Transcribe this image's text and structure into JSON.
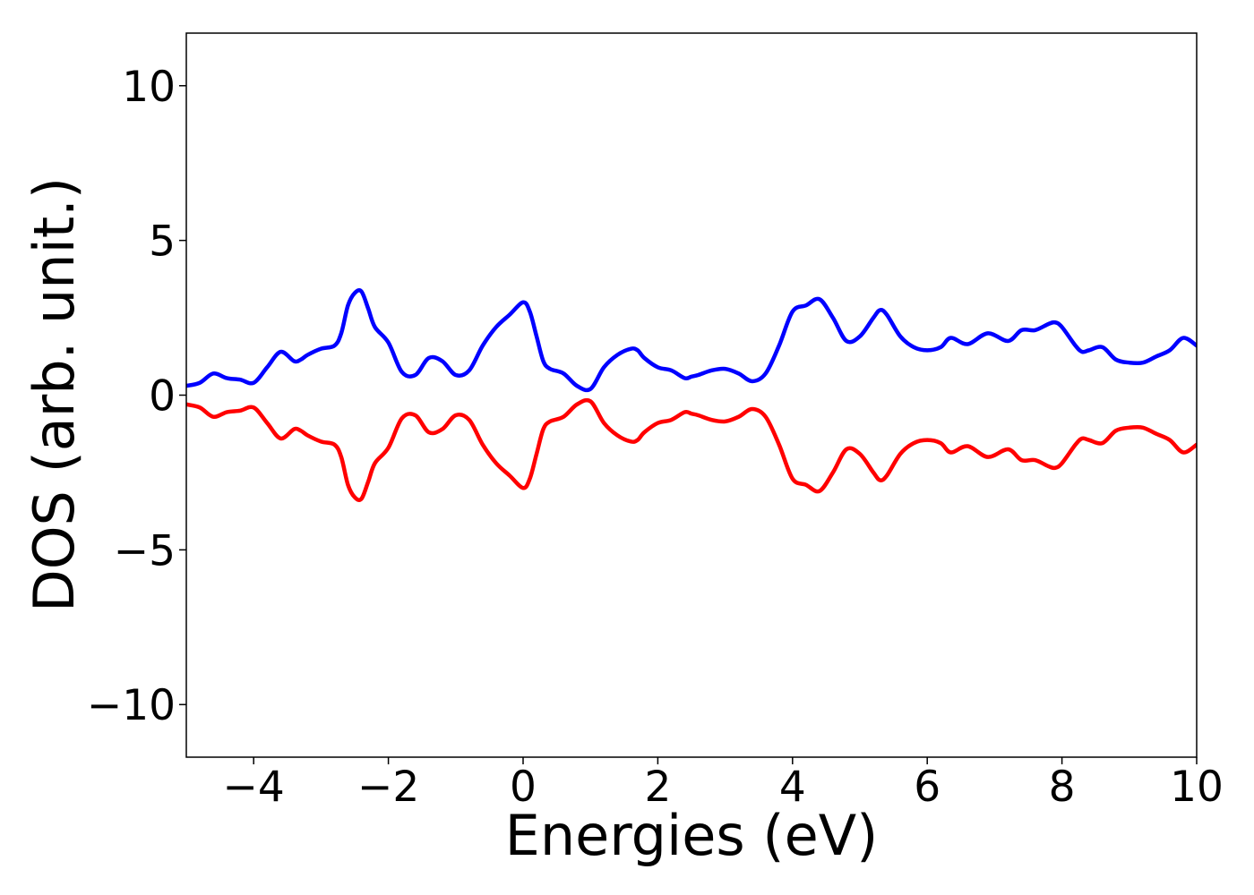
{
  "chart_data": {
    "type": "line",
    "title": "",
    "xlabel": "Energies (eV)",
    "ylabel": "DOS (arb. unit.)",
    "xlim": [
      -5,
      10
    ],
    "ylim": [
      -11.7,
      11.7
    ],
    "xticks": [
      -4,
      -2,
      0,
      2,
      4,
      6,
      8,
      10
    ],
    "xtick_labels": [
      "−4",
      "−2",
      "0",
      "2",
      "4",
      "6",
      "8",
      "10"
    ],
    "yticks": [
      10,
      5,
      0,
      -5,
      -10
    ],
    "ytick_labels": [
      "10",
      "5",
      "0",
      "−5",
      "−10"
    ],
    "grid": false,
    "legend": "none",
    "series": [
      {
        "color": "#0000ff",
        "x": [
          -5.0,
          -4.8,
          -4.6,
          -4.4,
          -4.2,
          -4.0,
          -3.8,
          -3.6,
          -3.4,
          -3.3,
          -3.2,
          -3.0,
          -2.8,
          -2.7,
          -2.6,
          -2.5,
          -2.4,
          -2.3,
          -2.2,
          -2.0,
          -1.8,
          -1.6,
          -1.4,
          -1.2,
          -1.0,
          -0.8,
          -0.6,
          -0.4,
          -0.2,
          0.0,
          0.1,
          0.2,
          0.3,
          0.4,
          0.6,
          0.8,
          1.0,
          1.2,
          1.4,
          1.6,
          1.7,
          1.8,
          2.0,
          2.2,
          2.4,
          2.5,
          2.6,
          2.8,
          3.0,
          3.2,
          3.4,
          3.6,
          3.8,
          4.0,
          4.2,
          4.4,
          4.6,
          4.8,
          5.0,
          5.2,
          5.3,
          5.4,
          5.6,
          5.8,
          6.0,
          6.2,
          6.35,
          6.6,
          6.9,
          7.2,
          7.4,
          7.6,
          7.8,
          7.9,
          8.0,
          8.2,
          8.3,
          8.4,
          8.6,
          8.8,
          9.0,
          9.2,
          9.4,
          9.6,
          9.8,
          10.0
        ],
        "y": [
          0.3,
          0.4,
          0.7,
          0.55,
          0.5,
          0.4,
          0.9,
          1.4,
          1.1,
          1.15,
          1.3,
          1.5,
          1.6,
          2.0,
          2.9,
          3.3,
          3.35,
          2.8,
          2.2,
          1.7,
          0.75,
          0.65,
          1.2,
          1.1,
          0.65,
          0.8,
          1.6,
          2.2,
          2.6,
          3.0,
          2.7,
          1.9,
          1.1,
          0.85,
          0.7,
          0.3,
          0.2,
          0.9,
          1.3,
          1.5,
          1.45,
          1.2,
          0.9,
          0.8,
          0.55,
          0.6,
          0.65,
          0.8,
          0.85,
          0.7,
          0.45,
          0.7,
          1.6,
          2.7,
          2.9,
          3.1,
          2.5,
          1.75,
          1.9,
          2.5,
          2.75,
          2.6,
          1.9,
          1.55,
          1.45,
          1.55,
          1.85,
          1.65,
          2.0,
          1.75,
          2.1,
          2.1,
          2.3,
          2.35,
          2.2,
          1.6,
          1.4,
          1.45,
          1.55,
          1.15,
          1.05,
          1.05,
          1.25,
          1.45,
          1.85,
          1.6
        ]
      },
      {
        "color": "#ff0000",
        "x": [
          -5.0,
          -4.8,
          -4.6,
          -4.4,
          -4.2,
          -4.0,
          -3.8,
          -3.6,
          -3.4,
          -3.3,
          -3.2,
          -3.0,
          -2.8,
          -2.7,
          -2.6,
          -2.5,
          -2.4,
          -2.3,
          -2.2,
          -2.0,
          -1.8,
          -1.6,
          -1.4,
          -1.2,
          -1.0,
          -0.8,
          -0.6,
          -0.4,
          -0.2,
          0.0,
          0.1,
          0.2,
          0.3,
          0.4,
          0.6,
          0.8,
          1.0,
          1.2,
          1.4,
          1.6,
          1.7,
          1.8,
          2.0,
          2.2,
          2.4,
          2.5,
          2.6,
          2.8,
          3.0,
          3.2,
          3.4,
          3.6,
          3.8,
          4.0,
          4.2,
          4.4,
          4.6,
          4.8,
          5.0,
          5.2,
          5.3,
          5.4,
          5.6,
          5.8,
          6.0,
          6.2,
          6.35,
          6.6,
          6.9,
          7.2,
          7.4,
          7.6,
          7.8,
          7.9,
          8.0,
          8.2,
          8.3,
          8.4,
          8.6,
          8.8,
          9.0,
          9.2,
          9.4,
          9.6,
          9.8,
          10.0
        ],
        "y": [
          -0.3,
          -0.4,
          -0.7,
          -0.55,
          -0.5,
          -0.4,
          -0.9,
          -1.4,
          -1.1,
          -1.15,
          -1.3,
          -1.5,
          -1.6,
          -2.0,
          -2.9,
          -3.3,
          -3.35,
          -2.8,
          -2.2,
          -1.7,
          -0.75,
          -0.65,
          -1.2,
          -1.1,
          -0.65,
          -0.8,
          -1.6,
          -2.2,
          -2.6,
          -3.0,
          -2.7,
          -1.9,
          -1.1,
          -0.85,
          -0.7,
          -0.3,
          -0.2,
          -0.9,
          -1.3,
          -1.5,
          -1.45,
          -1.2,
          -0.9,
          -0.8,
          -0.55,
          -0.6,
          -0.65,
          -0.8,
          -0.85,
          -0.7,
          -0.45,
          -0.7,
          -1.6,
          -2.7,
          -2.9,
          -3.1,
          -2.5,
          -1.75,
          -1.9,
          -2.5,
          -2.75,
          -2.6,
          -1.9,
          -1.55,
          -1.45,
          -1.55,
          -1.85,
          -1.65,
          -2.0,
          -1.75,
          -2.1,
          -2.1,
          -2.3,
          -2.35,
          -2.2,
          -1.6,
          -1.4,
          -1.45,
          -1.55,
          -1.15,
          -1.05,
          -1.05,
          -1.25,
          -1.45,
          -1.85,
          -1.6
        ]
      }
    ]
  }
}
